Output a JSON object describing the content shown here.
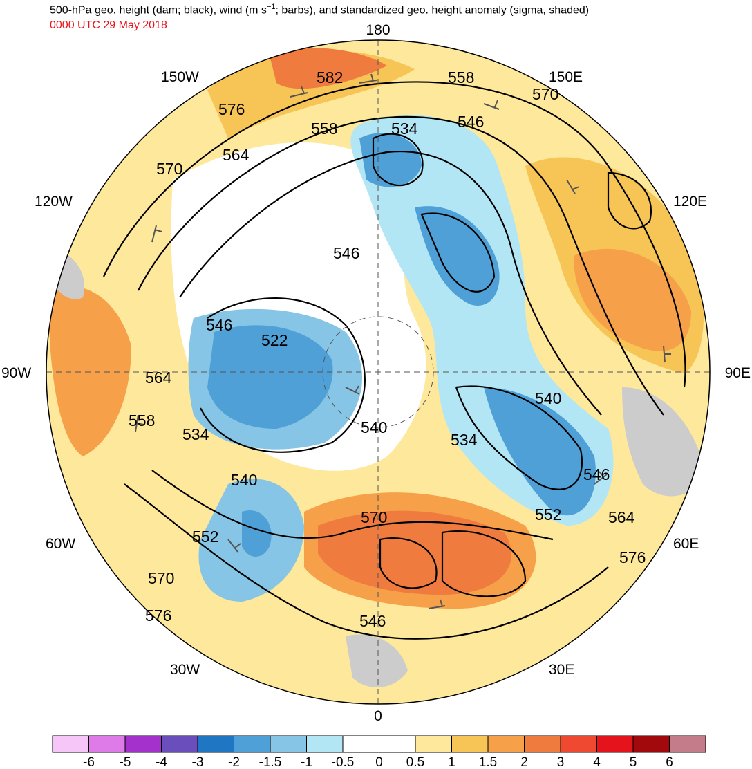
{
  "header": {
    "title_pre": "500-hPa geo. height (dam; black), wind (m s",
    "title_exp": "−1",
    "title_post": "; barbs), and standardized geo. height anomaly (sigma, shaded)",
    "subtitle": "0000 UTC 29 May 2018"
  },
  "longitude_labels": {
    "north": "180",
    "south": "0",
    "west": "90W",
    "east": "90E",
    "w150": "150W",
    "e150": "150E",
    "w120": "120W",
    "e120": "120E",
    "w60": "60W",
    "e60": "60E",
    "w30": "30W",
    "e30": "30E"
  },
  "contour_labels": [
    "582",
    "558",
    "570",
    "576",
    "558",
    "564",
    "570",
    "534",
    "546",
    "546",
    "546",
    "522",
    "564",
    "558",
    "534",
    "540",
    "540",
    "534",
    "540",
    "546",
    "552",
    "552",
    "570",
    "564",
    "576",
    "570",
    "576",
    "546"
  ],
  "colorbar": {
    "ticks": [
      "-6",
      "-5",
      "-4",
      "-3",
      "-2",
      "-1.5",
      "-1",
      "-0.5",
      "0",
      "0.5",
      "1",
      "1.5",
      "2",
      "3",
      "4",
      "5",
      "6"
    ],
    "colors": [
      "#f6c6f8",
      "#de7be8",
      "#a531cd",
      "#6a4fbc",
      "#1f77c3",
      "#4ea0d7",
      "#86c5e6",
      "#b3e6f4",
      "#ffffff",
      "#ffffff",
      "#fde89c",
      "#f7c456",
      "#f6a049",
      "#f07b3f",
      "#ef4932",
      "#e5141c",
      "#a1090d",
      "#c57c8a"
    ]
  },
  "colors": {
    "land_gray": "#cccccc",
    "contour": "#000000",
    "barb": "#555555",
    "subtitle_red": "#e8141c"
  }
}
